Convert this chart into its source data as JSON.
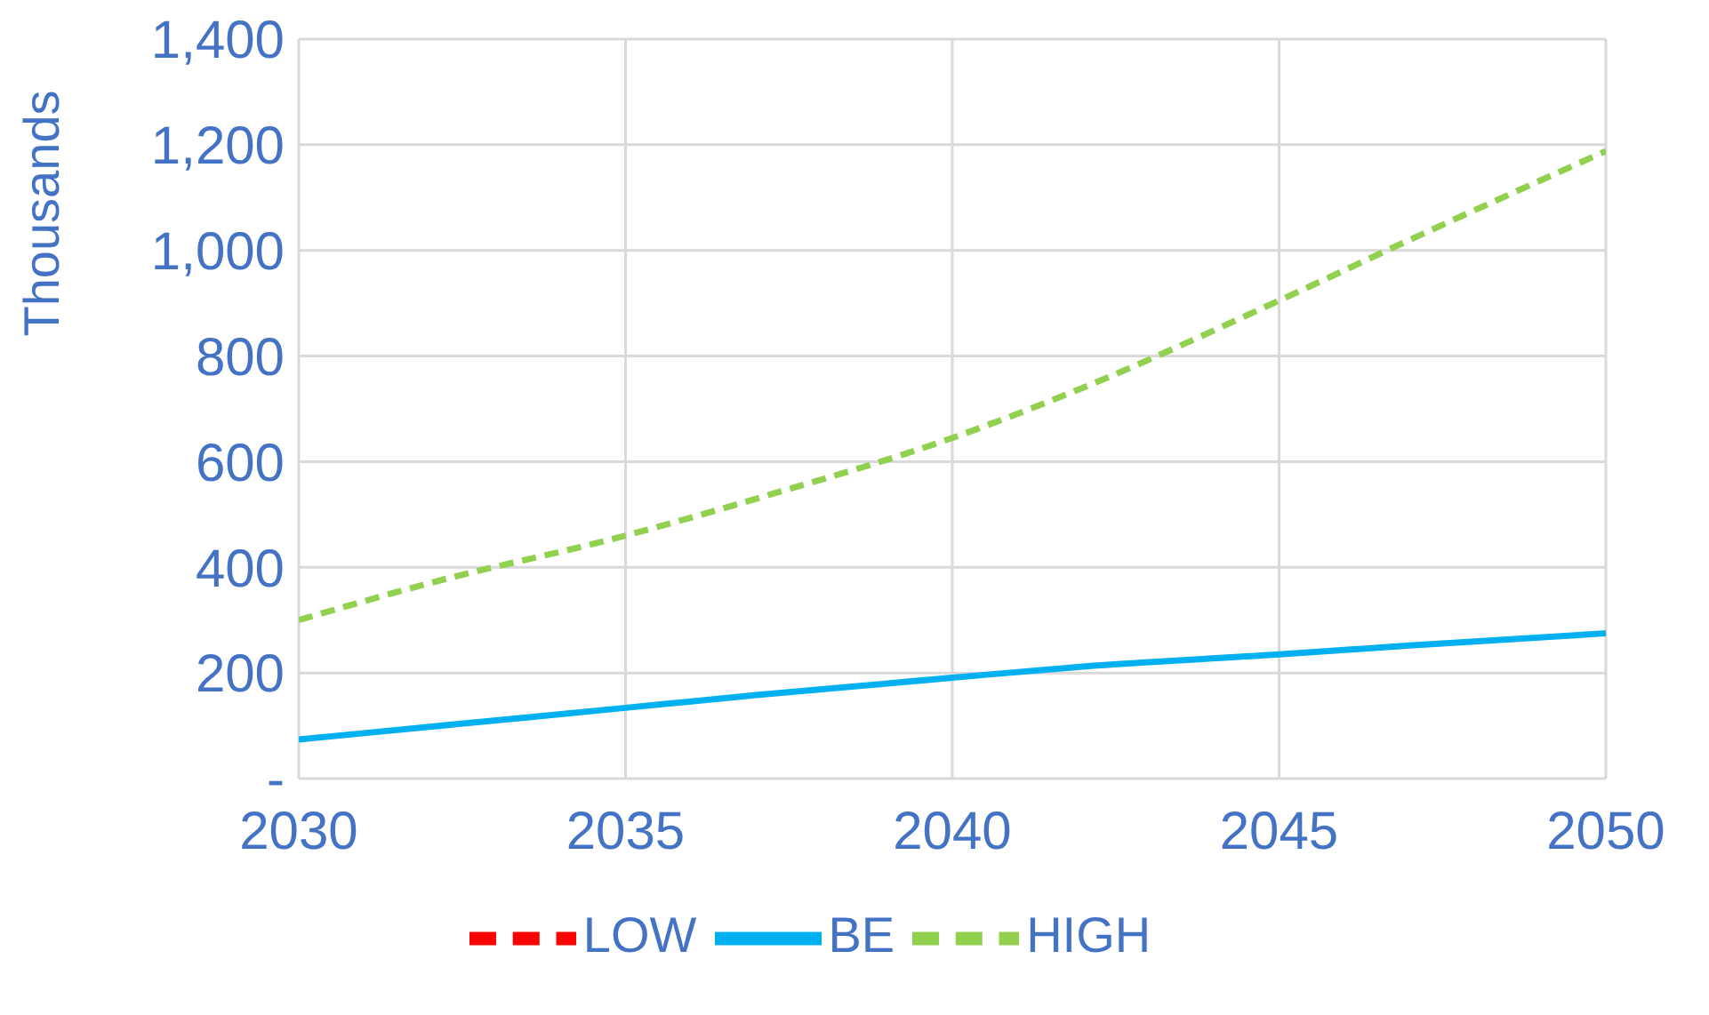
{
  "chart_data": {
    "type": "line",
    "ylabel": "Thousands",
    "x": [
      2030,
      2032,
      2035,
      2037,
      2040,
      2042,
      2045,
      2047,
      2050
    ],
    "series": [
      {
        "name": "LOW",
        "color": "#ff0000",
        "line_style": "dashed",
        "values": [
          null,
          null,
          null,
          null,
          null,
          null,
          null,
          null,
          null
        ]
      },
      {
        "name": "BE",
        "color": "#00b0f0",
        "line_style": "solid",
        "values": [
          74,
          98,
          134,
          158,
          191,
          212,
          235,
          252,
          275
        ]
      },
      {
        "name": "HIGH",
        "color": "#92d050",
        "line_style": "dashed",
        "values": [
          300,
          370,
          460,
          530,
          645,
          740,
          905,
          1020,
          1188
        ]
      }
    ],
    "xlim": [
      2030,
      2050
    ],
    "xticks": [
      2030,
      2035,
      2040,
      2045,
      2050
    ],
    "ylim": [
      0,
      1400
    ],
    "yticks": [
      {
        "value": 0,
        "label": "-"
      },
      {
        "value": 200,
        "label": "200"
      },
      {
        "value": 400,
        "label": "400"
      },
      {
        "value": 600,
        "label": "600"
      },
      {
        "value": 800,
        "label": "800"
      },
      {
        "value": 1000,
        "label": "1,000"
      },
      {
        "value": 1200,
        "label": "1,200"
      },
      {
        "value": 1400,
        "label": "1,400"
      }
    ],
    "grid": true,
    "legend": "bottom",
    "marker": "none"
  }
}
